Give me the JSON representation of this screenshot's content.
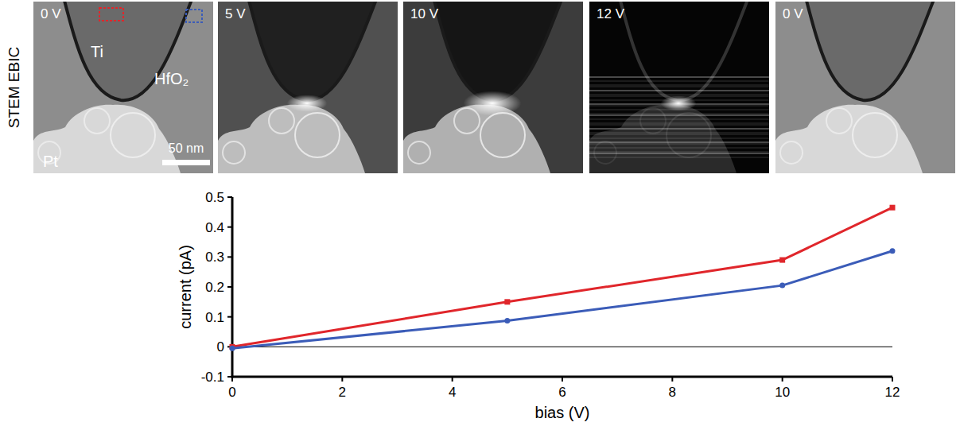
{
  "figure": {
    "row_label": "STEM EBIC",
    "panels": [
      {
        "label": "0 V"
      },
      {
        "label": "5 V"
      },
      {
        "label": "10 V"
      },
      {
        "label": "12 V"
      },
      {
        "label": "0 V"
      }
    ],
    "annotations": [
      "Ti",
      "HfO₂",
      "Pt"
    ],
    "scale_bar": "50 nm"
  },
  "chart_data": {
    "type": "line",
    "x": [
      0,
      5,
      10,
      12
    ],
    "series": [
      {
        "color": "#e0262b",
        "marker": "square",
        "values": [
          0,
          0.15,
          0.29,
          0.465
        ]
      },
      {
        "color": "#3b5cb8",
        "marker": "circle",
        "values": [
          -0.005,
          0.087,
          0.205,
          0.32
        ]
      }
    ],
    "xlabel": "bias (V)",
    "ylabel": "current (pA)",
    "xlim": [
      0,
      12
    ],
    "ylim": [
      -0.1,
      0.5
    ],
    "xticks": [
      0,
      2,
      4,
      6,
      8,
      10,
      12
    ],
    "yticks": [
      -0.1,
      0,
      0.1,
      0.2,
      0.3,
      0.4,
      0.5
    ]
  }
}
